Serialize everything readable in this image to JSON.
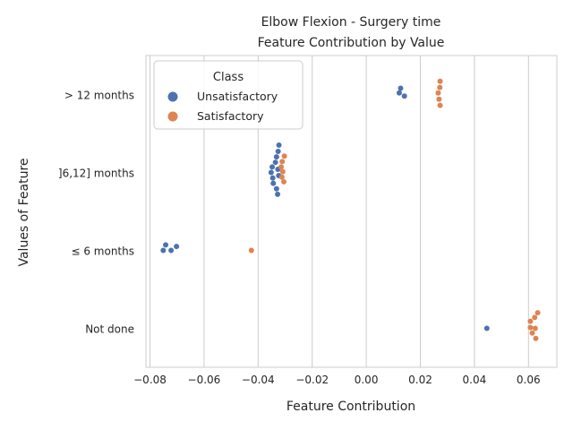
{
  "chart_data": {
    "type": "scatter",
    "title_line1": "Elbow Flexion - Surgery time",
    "title_line2": "Feature Contribution by Value",
    "xlabel": "Feature Contribution",
    "ylabel": "Values of Feature",
    "xlim": [
      -0.0815,
      0.0705
    ],
    "xticks": [
      -0.08,
      -0.06,
      -0.04,
      -0.02,
      0.0,
      0.02,
      0.04,
      0.06
    ],
    "xtick_labels": [
      "−0.08",
      "−0.06",
      "−0.04",
      "−0.02",
      "0.00",
      "0.02",
      "0.04",
      "0.06"
    ],
    "categories": [
      "> 12 months",
      "]6,12] months",
      "≤ 6 months",
      "Not done"
    ],
    "grid": "vertical",
    "legend": {
      "title": "Class",
      "position": "top-left",
      "entries": [
        {
          "label": "Unsatisfactory",
          "color": "#4c72b0"
        },
        {
          "label": "Satisfactory",
          "color": "#dd8452"
        }
      ]
    },
    "series": [
      {
        "name": "Unsatisfactory",
        "color": "#4c72b0",
        "points": [
          {
            "category": "> 12 months",
            "x": 0.0127,
            "offset": -0.08
          },
          {
            "category": "> 12 months",
            "x": 0.0122,
            "offset": -0.02
          },
          {
            "category": "> 12 months",
            "x": 0.0141,
            "offset": 0.02
          },
          {
            "category": "]6,12] months",
            "x": -0.0323,
            "offset": -0.35
          },
          {
            "category": "]6,12] months",
            "x": -0.0326,
            "offset": -0.27
          },
          {
            "category": "]6,12] months",
            "x": -0.0332,
            "offset": -0.2
          },
          {
            "category": "]6,12] months",
            "x": -0.0336,
            "offset": -0.13
          },
          {
            "category": "]6,12] months",
            "x": -0.0348,
            "offset": -0.07
          },
          {
            "category": "]6,12] months",
            "x": -0.0327,
            "offset": -0.04
          },
          {
            "category": "]6,12] months",
            "x": -0.0352,
            "offset": 0.0
          },
          {
            "category": "]6,12] months",
            "x": -0.0324,
            "offset": 0.04
          },
          {
            "category": "]6,12] months",
            "x": -0.0346,
            "offset": 0.07
          },
          {
            "category": "]6,12] months",
            "x": -0.0344,
            "offset": 0.14
          },
          {
            "category": "]6,12] months",
            "x": -0.0332,
            "offset": 0.21
          },
          {
            "category": "]6,12] months",
            "x": -0.0328,
            "offset": 0.28
          },
          {
            "category": "≤ 6 months",
            "x": -0.0742,
            "offset": -0.07
          },
          {
            "category": "≤ 6 months",
            "x": -0.0702,
            "offset": -0.05
          },
          {
            "category": "≤ 6 months",
            "x": -0.0751,
            "offset": 0.0
          },
          {
            "category": "≤ 6 months",
            "x": -0.0722,
            "offset": 0.0
          },
          {
            "category": "Not done",
            "x": 0.0446,
            "offset": 0.0
          }
        ]
      },
      {
        "name": "Satisfactory",
        "color": "#dd8452",
        "points": [
          {
            "category": "> 12 months",
            "x": 0.0273,
            "offset": -0.17
          },
          {
            "category": "> 12 months",
            "x": 0.0272,
            "offset": -0.09
          },
          {
            "category": "> 12 months",
            "x": 0.0266,
            "offset": -0.02
          },
          {
            "category": "> 12 months",
            "x": 0.0269,
            "offset": 0.06
          },
          {
            "category": "> 12 months",
            "x": 0.0273,
            "offset": 0.14
          },
          {
            "category": "]6,12] months",
            "x": -0.0303,
            "offset": -0.21
          },
          {
            "category": "]6,12] months",
            "x": -0.0311,
            "offset": -0.14
          },
          {
            "category": "]6,12] months",
            "x": -0.0315,
            "offset": -0.07
          },
          {
            "category": "]6,12] months",
            "x": -0.0309,
            "offset": -0.01
          },
          {
            "category": "]6,12] months",
            "x": -0.0312,
            "offset": 0.06
          },
          {
            "category": "]6,12] months",
            "x": -0.0305,
            "offset": 0.12
          },
          {
            "category": "≤ 6 months",
            "x": -0.0425,
            "offset": 0.0
          },
          {
            "category": "Not done",
            "x": 0.0634,
            "offset": -0.2
          },
          {
            "category": "Not done",
            "x": 0.0623,
            "offset": -0.14
          },
          {
            "category": "Not done",
            "x": 0.0607,
            "offset": -0.09
          },
          {
            "category": "Not done",
            "x": 0.0607,
            "offset": -0.01
          },
          {
            "category": "Not done",
            "x": 0.0625,
            "offset": 0.0
          },
          {
            "category": "Not done",
            "x": 0.0614,
            "offset": 0.06
          },
          {
            "category": "Not done",
            "x": 0.0627,
            "offset": 0.13
          }
        ]
      }
    ]
  }
}
